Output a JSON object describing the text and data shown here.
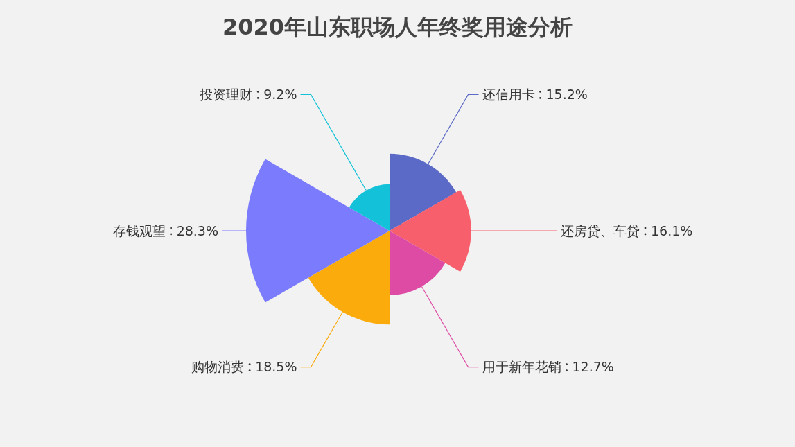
{
  "chart_data": {
    "type": "other",
    "title": "2020年山东职场人年终奖用途分析",
    "categories": [
      "还信用卡",
      "还房贷、车贷",
      "用于新年花销",
      "购物消费",
      "存钱观望",
      "投资理财"
    ],
    "values": [
      15.2,
      16.1,
      12.7,
      18.5,
      28.3,
      9.2
    ],
    "value_labels": [
      "15.2%",
      "16.1%",
      "12.7%",
      "18.5%",
      "28.3%",
      "9.2%"
    ],
    "colors": [
      "#5b6ac6",
      "#f75f6c",
      "#dd4ba5",
      "#fbab0b",
      "#7b7bfd",
      "#13c2d8"
    ]
  }
}
